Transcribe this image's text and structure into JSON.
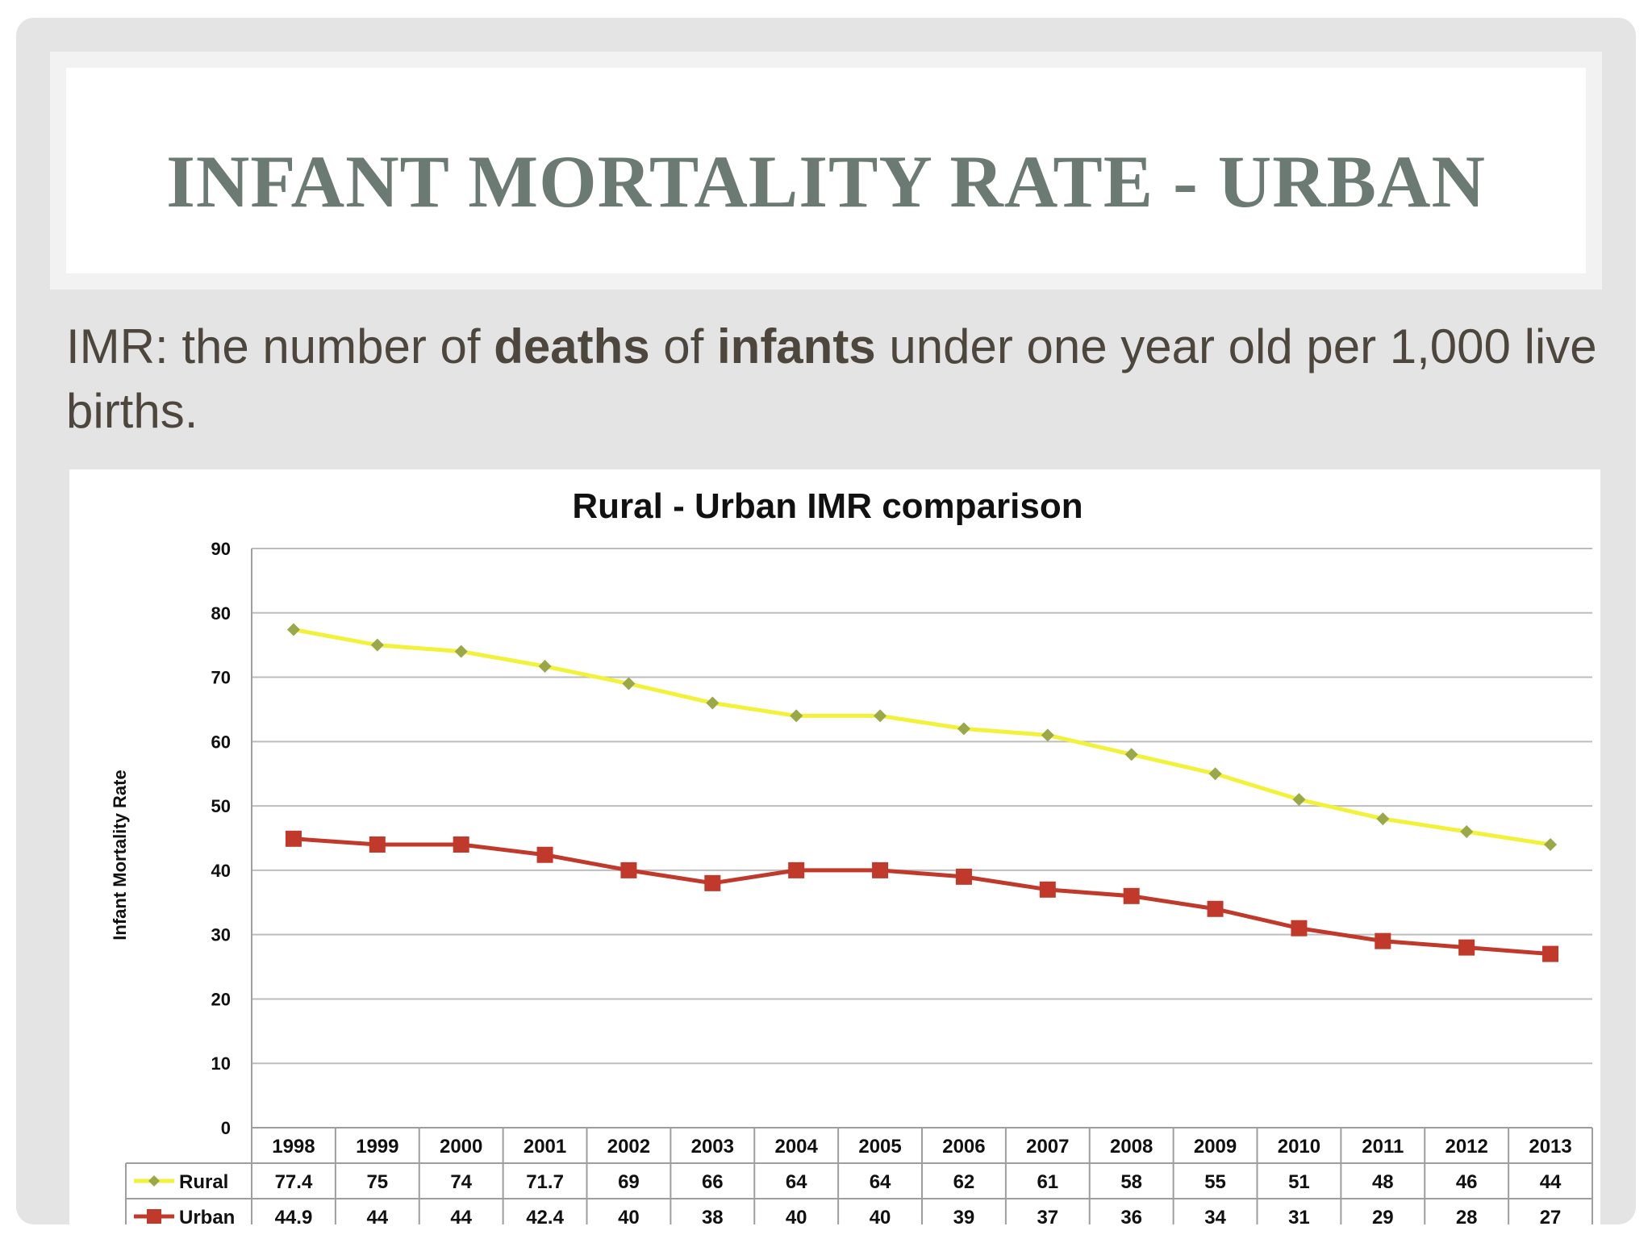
{
  "slide": {
    "title": "Infant Mortality Rate - Urban",
    "definition": {
      "p1": "IMR:  the number of ",
      "b1": "deaths",
      "p2": " of ",
      "b2": "infants",
      "p3": " under one year old per 1,000 live births."
    }
  },
  "chart_data": {
    "type": "line",
    "title": "Rural - Urban IMR comparison",
    "ylabel": "Infant Mortality Rate",
    "xlabel": "",
    "ylim": [
      0,
      90
    ],
    "yticks": [
      "0",
      "10",
      "20",
      "30",
      "40",
      "50",
      "60",
      "70",
      "80",
      "90"
    ],
    "grid": true,
    "legend": "data-table",
    "categories": [
      "1998",
      "1999",
      "2000",
      "2001",
      "2002",
      "2003",
      "2004",
      "2005",
      "2006",
      "2007",
      "2008",
      "2009",
      "2010",
      "2011",
      "2012",
      "2013"
    ],
    "series": [
      {
        "name": "Rural",
        "color": "#f2f23a",
        "marker": "diamond",
        "marker_color": "#9aa84a",
        "values": [
          77.4,
          75,
          74,
          71.7,
          69,
          66,
          64,
          64,
          62,
          61,
          58,
          55,
          51,
          48,
          46,
          44
        ],
        "labels": [
          "77.4",
          "75",
          "74",
          "71.7",
          "69",
          "66",
          "64",
          "64",
          "62",
          "61",
          "58",
          "55",
          "51",
          "48",
          "46",
          "44"
        ]
      },
      {
        "name": "Urban",
        "color": "#c0392b",
        "marker": "square",
        "marker_color": "#c0392b",
        "values": [
          44.9,
          44,
          44,
          42.4,
          40,
          38,
          40,
          40,
          39,
          37,
          36,
          34,
          31,
          29,
          28,
          27
        ],
        "labels": [
          "44.9",
          "44",
          "44",
          "42.4",
          "40",
          "38",
          "40",
          "40",
          "39",
          "37",
          "36",
          "34",
          "31",
          "29",
          "28",
          "27"
        ]
      }
    ]
  }
}
